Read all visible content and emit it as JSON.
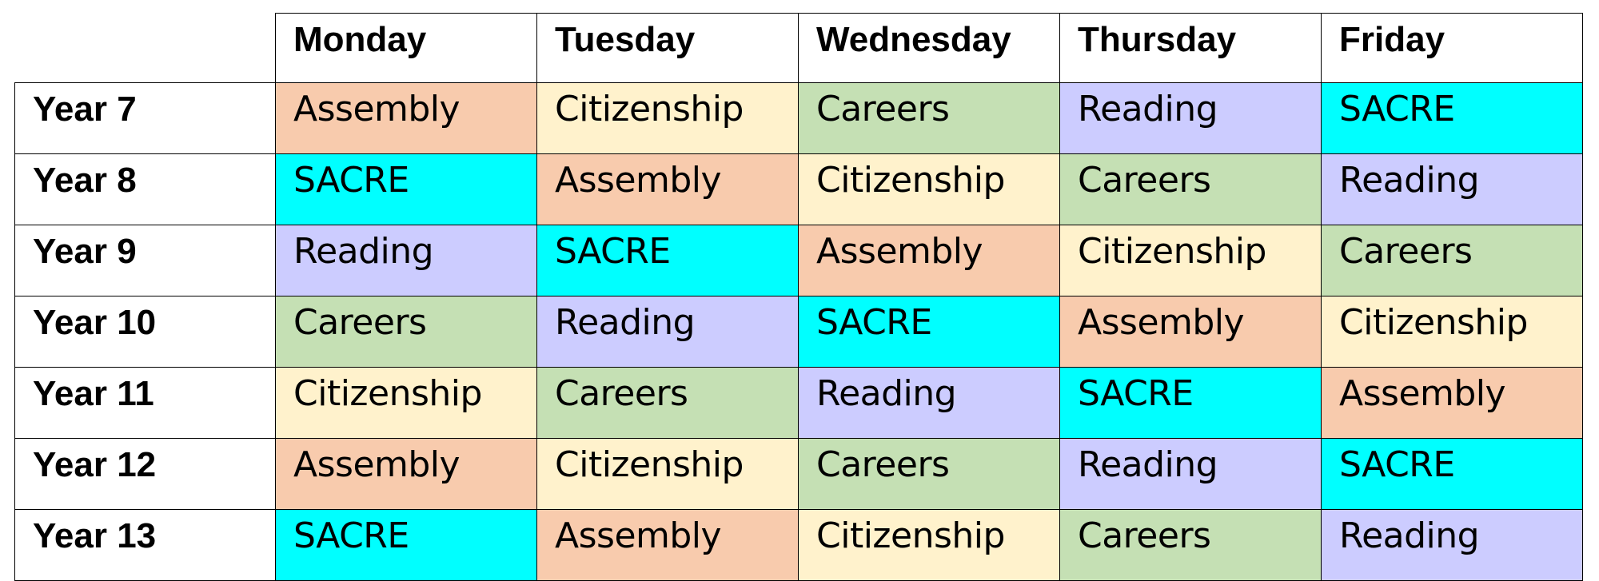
{
  "colors": {
    "Assembly": "#f8cbad",
    "Citizenship": "#fff2cc",
    "Careers": "#c5e0b4",
    "Reading": "#ccccff",
    "SACRE": "#00ffff"
  },
  "days": [
    "Monday",
    "Tuesday",
    "Wednesday",
    "Thursday",
    "Friday"
  ],
  "rows": [
    {
      "year": "Year 7",
      "cells": [
        "Assembly",
        "Citizenship",
        "Careers",
        "Reading",
        "SACRE"
      ]
    },
    {
      "year": "Year 8",
      "cells": [
        "SACRE",
        "Assembly",
        "Citizenship",
        "Careers",
        "Reading"
      ]
    },
    {
      "year": "Year 9",
      "cells": [
        "Reading",
        "SACRE",
        "Assembly",
        "Citizenship",
        "Careers"
      ]
    },
    {
      "year": "Year 10",
      "cells": [
        "Careers",
        "Reading",
        "SACRE",
        "Assembly",
        "Citizenship"
      ]
    },
    {
      "year": "Year 11",
      "cells": [
        "Citizenship",
        "Careers",
        "Reading",
        "SACRE",
        "Assembly"
      ]
    },
    {
      "year": "Year 12",
      "cells": [
        "Assembly",
        "Citizenship",
        "Careers",
        "Reading",
        "SACRE"
      ]
    },
    {
      "year": "Year 13",
      "cells": [
        "SACRE",
        "Assembly",
        "Citizenship",
        "Careers",
        "Reading"
      ]
    }
  ]
}
